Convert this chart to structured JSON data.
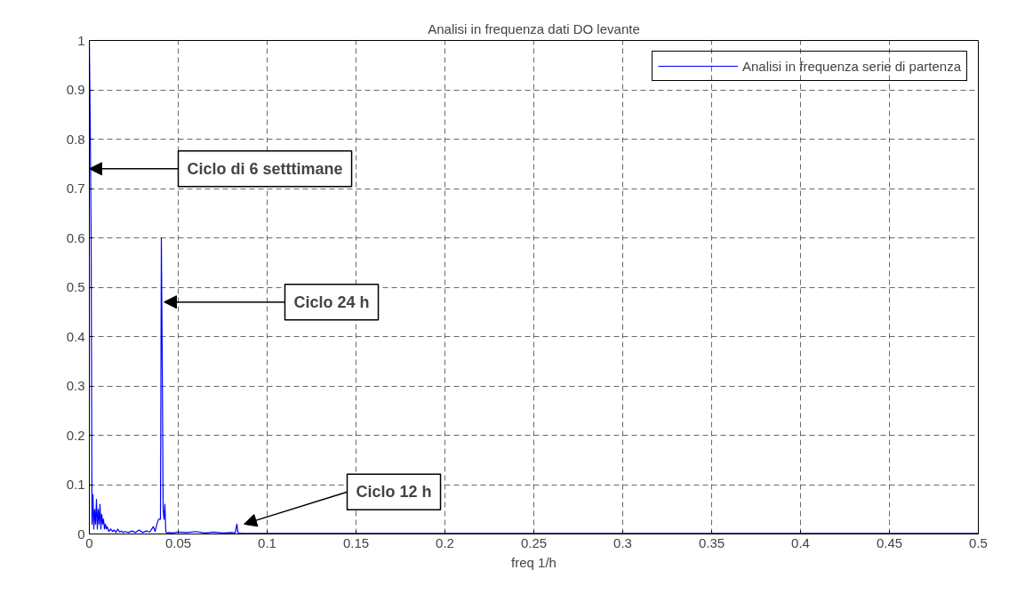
{
  "chart_data": {
    "type": "line",
    "title": "Analisi in frequenza dati DO levante",
    "xlabel": "freq 1/h",
    "x": [
      0,
      0.0005,
      0.001,
      0.0015,
      0.002,
      0.0025,
      0.003,
      0.0035,
      0.004,
      0.0045,
      0.005,
      0.0055,
      0.006,
      0.0065,
      0.007,
      0.0075,
      0.008,
      0.0085,
      0.009,
      0.0095,
      0.01,
      0.011,
      0.012,
      0.013,
      0.014,
      0.015,
      0.016,
      0.017,
      0.018,
      0.019,
      0.02,
      0.022,
      0.024,
      0.026,
      0.028,
      0.03,
      0.032,
      0.034,
      0.036,
      0.037,
      0.038,
      0.039,
      0.04,
      0.0405,
      0.041,
      0.0415,
      0.042,
      0.0425,
      0.043,
      0.0435,
      0.044,
      0.045,
      0.047,
      0.05,
      0.055,
      0.06,
      0.065,
      0.07,
      0.075,
      0.08,
      0.082,
      0.083,
      0.0835,
      0.084,
      0.086,
      0.09,
      0.1,
      0.2,
      0.3,
      0.4,
      0.5
    ],
    "series": [
      {
        "name": "Analisi in frequenza serie di partenza",
        "color": "#0000ff",
        "values": [
          1.0,
          0.83,
          0.6,
          0.02,
          0.08,
          0.01,
          0.05,
          0.02,
          0.07,
          0.01,
          0.05,
          0.02,
          0.06,
          0.01,
          0.04,
          0.02,
          0.03,
          0.01,
          0.02,
          0.01,
          0.015,
          0.005,
          0.01,
          0.005,
          0.008,
          0.003,
          0.01,
          0.004,
          0.006,
          0.003,
          0.005,
          0.003,
          0.006,
          0.003,
          0.008,
          0.003,
          0.006,
          0.004,
          0.015,
          0.005,
          0.02,
          0.03,
          0.03,
          0.6,
          0.35,
          0.05,
          0.03,
          0.06,
          0.005,
          0.002,
          0.002,
          0.003,
          0.002,
          0.004,
          0.003,
          0.005,
          0.002,
          0.004,
          0.002,
          0.003,
          0.002,
          0.02,
          0.003,
          0.002,
          0.001,
          0.001,
          0.001,
          0.001,
          0.001,
          0.001,
          0.001
        ]
      }
    ],
    "xlim": [
      0,
      0.5
    ],
    "ylim": [
      0,
      1
    ],
    "xticks": [
      0,
      0.05,
      0.1,
      0.15,
      0.2,
      0.25,
      0.3,
      0.35,
      0.4,
      0.45,
      0.5
    ],
    "yticks": [
      0,
      0.1,
      0.2,
      0.3,
      0.4,
      0.5,
      0.6,
      0.7,
      0.8,
      0.9,
      1
    ],
    "annotations": [
      {
        "text": "Ciclo di 6 setttimane",
        "x": 0,
        "y": 0.74
      },
      {
        "text": "Ciclo 24 h",
        "x": 0.0405,
        "y": 0.47
      },
      {
        "text": "Ciclo 12 h",
        "x": 0.083,
        "y": 0.02
      }
    ],
    "grid": true,
    "legend": "top right",
    "line_style": "solid",
    "marker": "none"
  }
}
